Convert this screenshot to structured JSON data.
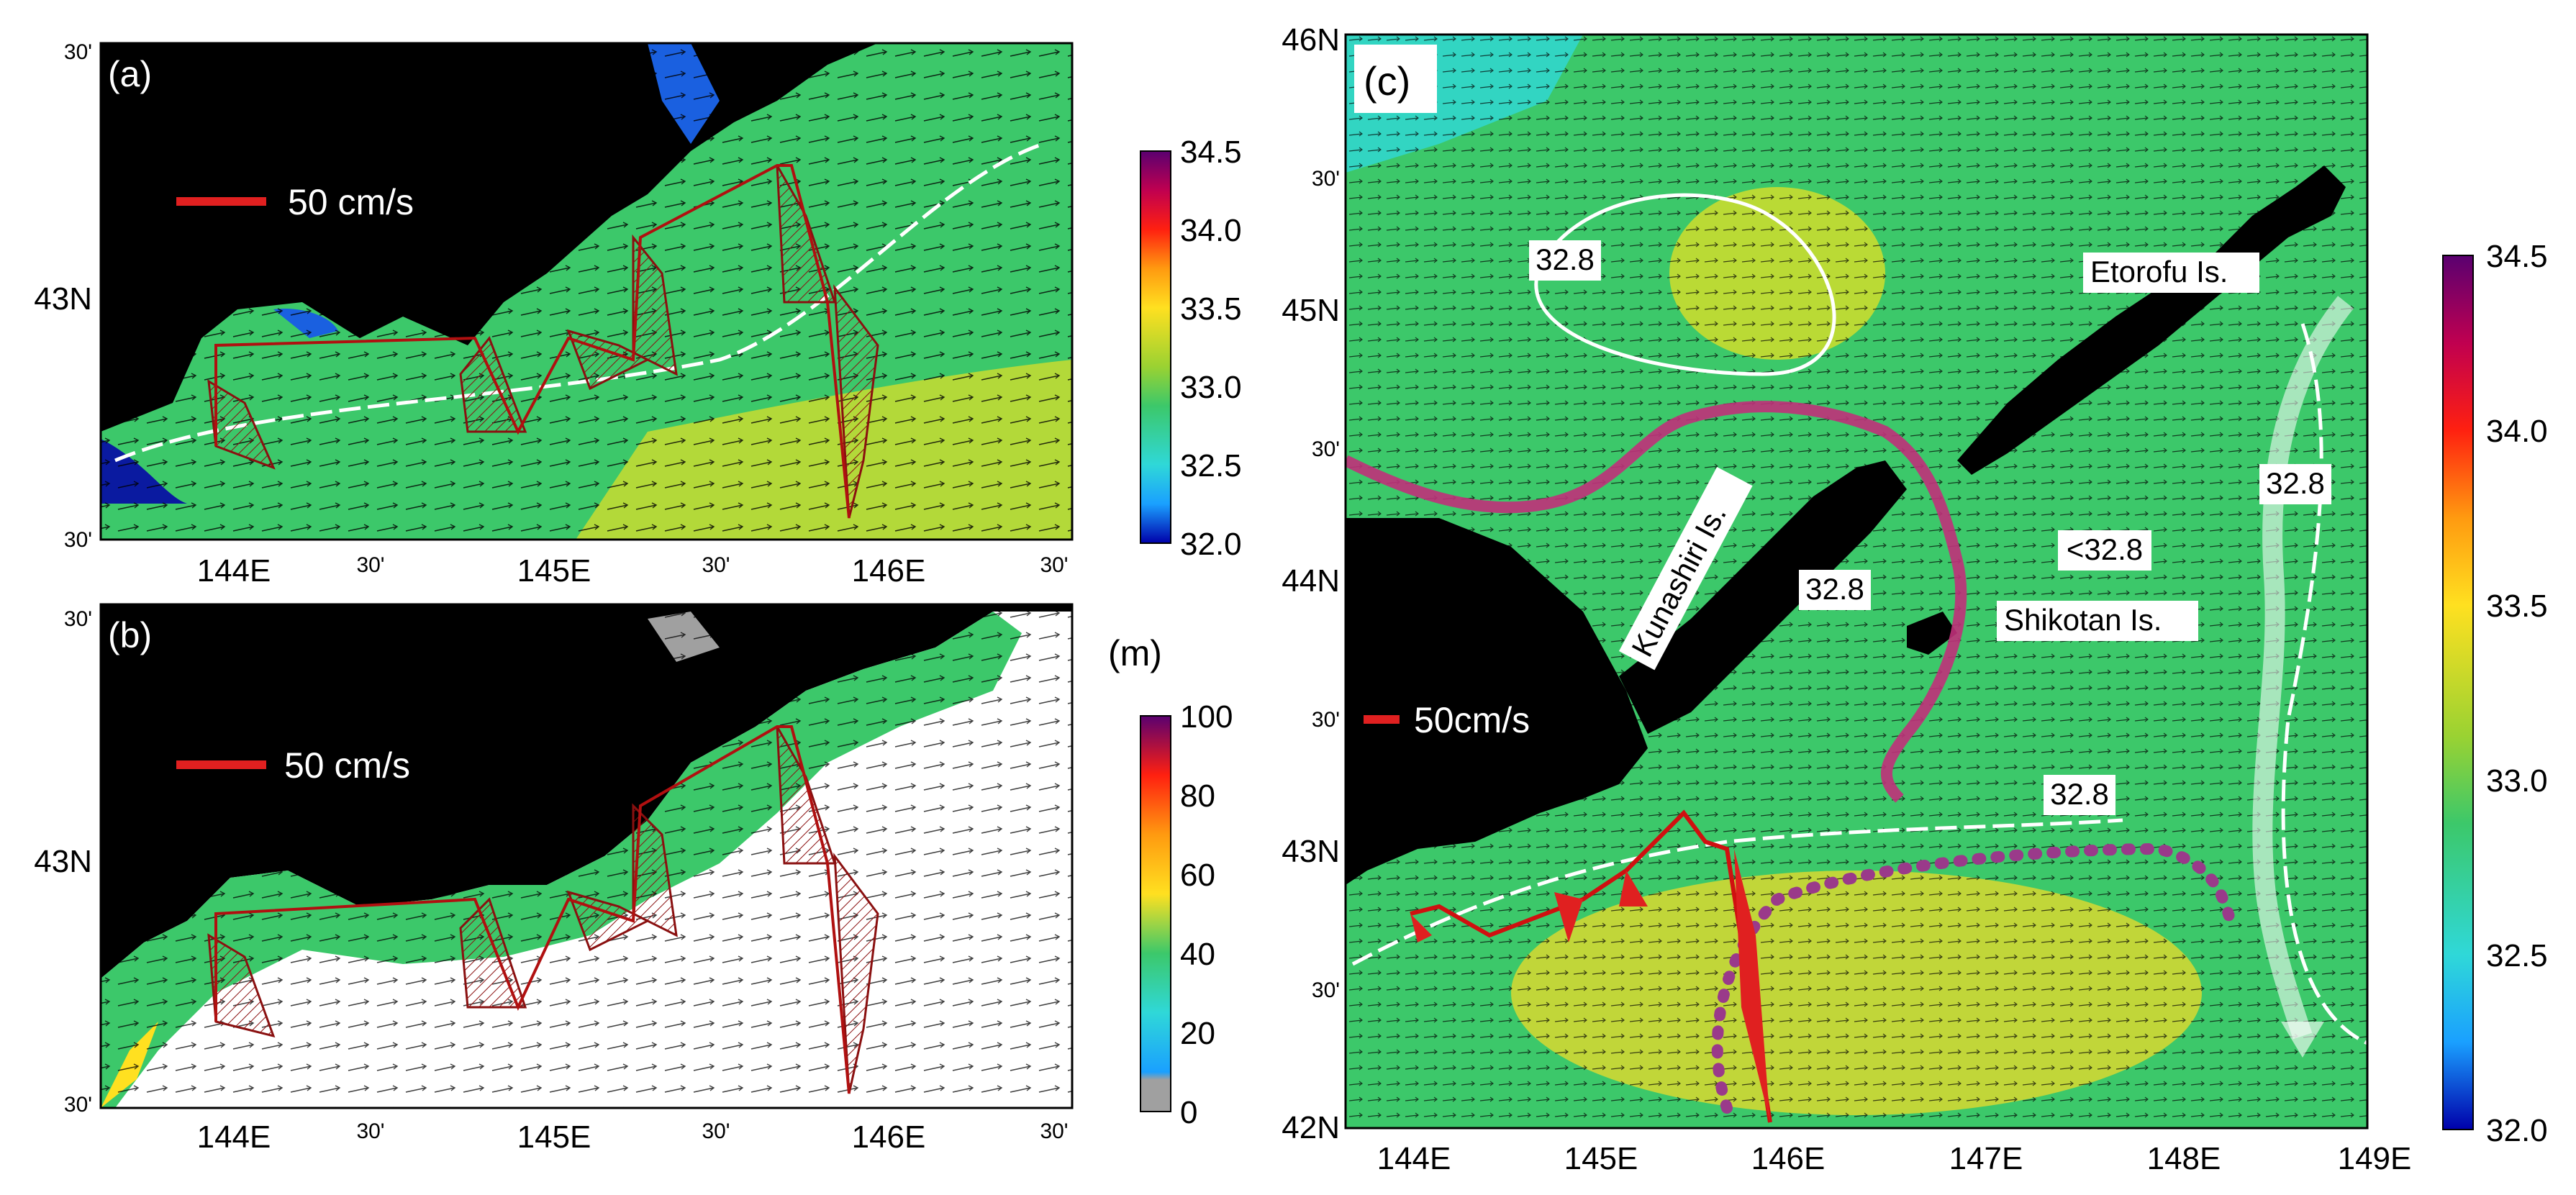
{
  "panels": {
    "a": {
      "label": "(a)",
      "scale_label": "50 cm/s",
      "lat_ticks": [
        "30'",
        "43N",
        "30'"
      ],
      "lon_ticks": [
        "144E",
        "30'",
        "145E",
        "30'",
        "146E",
        "30'"
      ],
      "colorbar": {
        "ticks": [
          "34.5",
          "34.0",
          "33.5",
          "33.0",
          "32.5",
          "32.0"
        ],
        "min": 32.0,
        "max": 34.5
      }
    },
    "b": {
      "label": "(b)",
      "scale_label": "50 cm/s",
      "lat_ticks": [
        "30'",
        "43N",
        "30'"
      ],
      "lon_ticks": [
        "144E",
        "30'",
        "145E",
        "30'",
        "146E",
        "30'"
      ],
      "colorbar": {
        "unit": "(m)",
        "ticks": [
          "100",
          "80",
          "60",
          "40",
          "20",
          "0"
        ],
        "min": 0,
        "max": 100
      }
    },
    "c": {
      "label": "(c)",
      "scale_label": "50cm/s",
      "lat_ticks": [
        "46N",
        "30'",
        "45N",
        "30'",
        "44N",
        "30'",
        "43N",
        "30'",
        "42N"
      ],
      "lon_ticks": [
        "144E",
        "145E",
        "146E",
        "147E",
        "148E",
        "149E"
      ],
      "annotations": [
        "32.8",
        "Etorofu Is.",
        "32.8",
        "<32.8",
        "Kunashiri Is.",
        "32.8",
        "Shikotan Is.",
        "32.8"
      ],
      "colorbar": {
        "ticks": [
          "34.5",
          "34.0",
          "33.5",
          "33.0",
          "32.5",
          "32.0"
        ],
        "min": 32.0,
        "max": 34.5
      }
    }
  },
  "colors": {
    "land": "#000000",
    "water": "#3cc86a",
    "scale_bar": "#e02020",
    "contour": "#ffffff",
    "current_path": "#c0307a"
  }
}
